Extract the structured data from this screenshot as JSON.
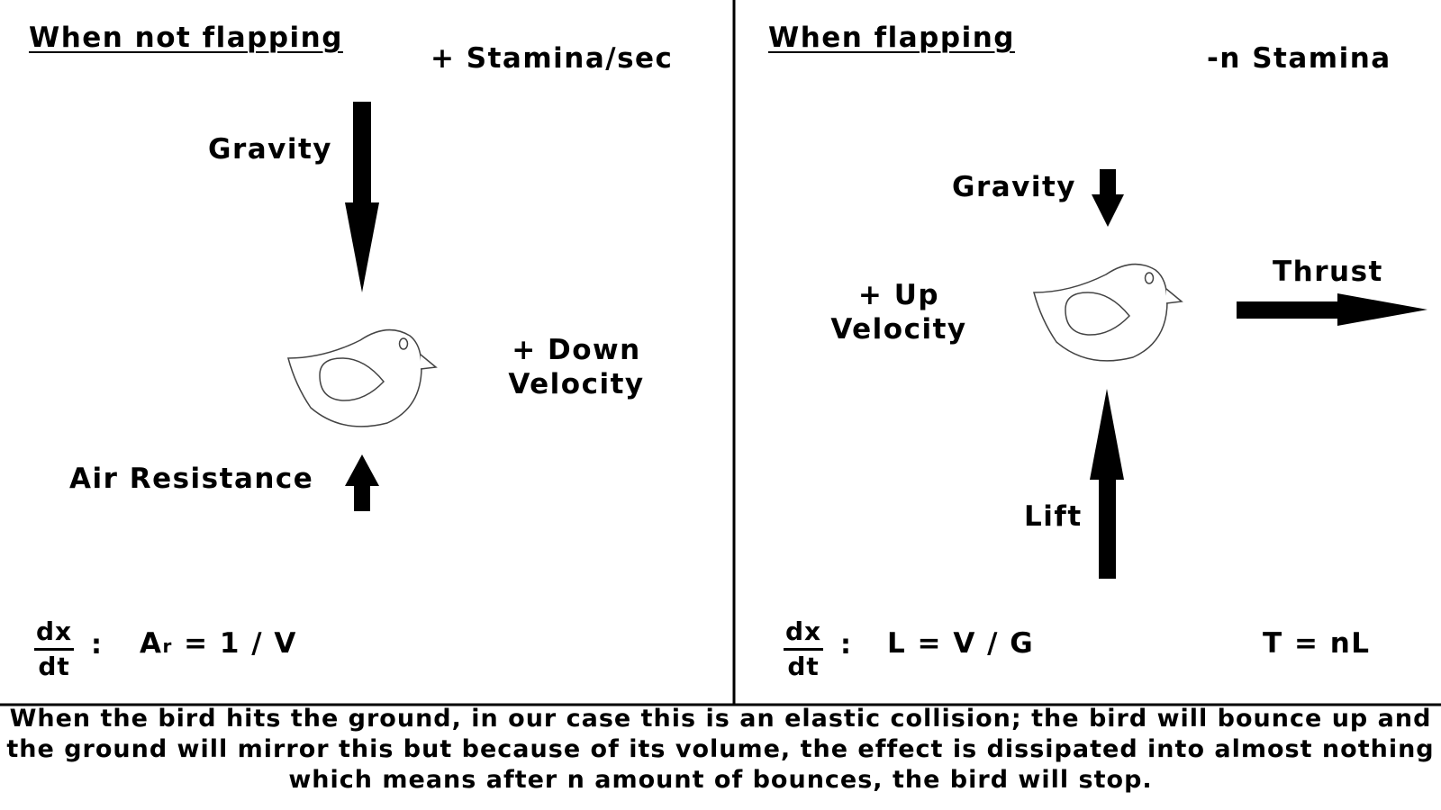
{
  "left_panel": {
    "title": "When not flapping",
    "stamina": "+ Stamina/sec",
    "gravity": "Gravity",
    "velocity": "+ Down\nVelocity",
    "air_resistance": "Air Resistance",
    "fraction_num": "dx",
    "fraction_den": "dt",
    "colon": ":",
    "equation_a": "A",
    "equation_sub": "r",
    "equation_rest": " = 1 / V"
  },
  "right_panel": {
    "title": "When flapping",
    "stamina": "-n Stamina",
    "gravity": "Gravity",
    "velocity": "+ Up\nVelocity",
    "thrust": "Thrust",
    "lift": "Lift",
    "fraction_num": "dx",
    "fraction_den": "dt",
    "colon": ":",
    "equation_lift": "L = V / G",
    "equation_thrust": "T = nL"
  },
  "caption": "When the bird hits the ground, in our case this is an elastic collision; the bird will bounce up and the ground will mirror this but because of its volume, the effect is dissipated into almost nothing which means after n amount of bounces, the bird will stop.",
  "colors": {
    "ink": "#000000",
    "background": "#ffffff"
  },
  "icons": [
    "bird-icon",
    "arrow-down-icon",
    "arrow-up-icon",
    "arrow-right-icon"
  ]
}
